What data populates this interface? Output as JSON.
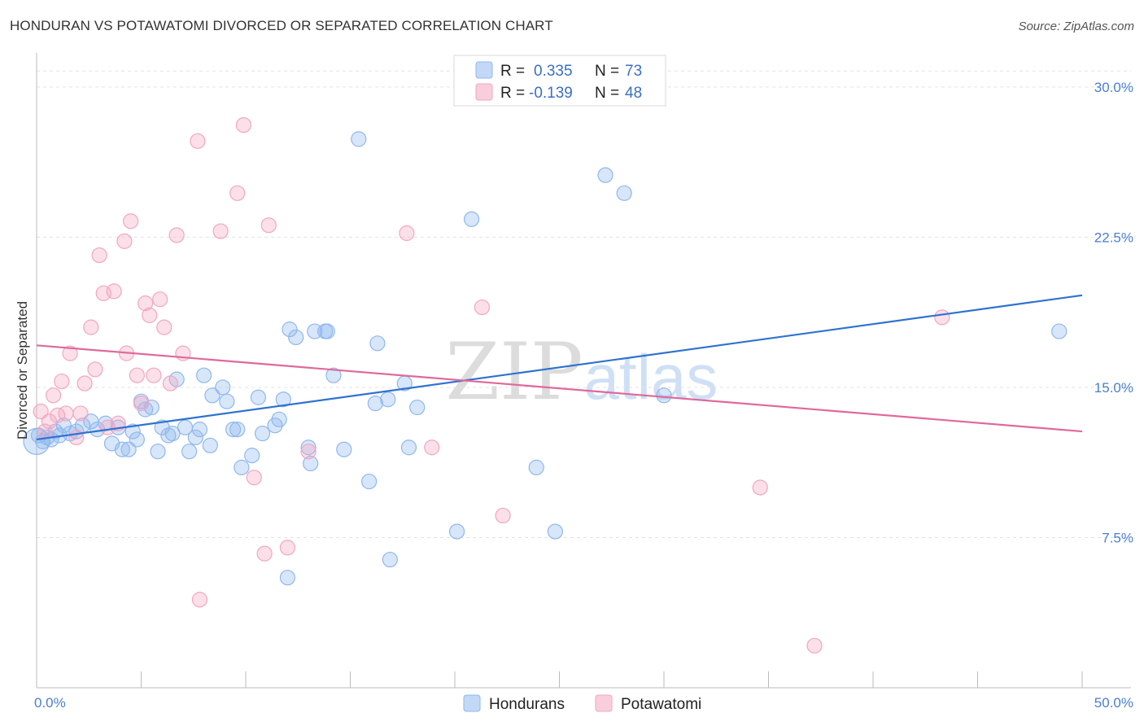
{
  "title": "HONDURAN VS POTAWATOMI DIVORCED OR SEPARATED CORRELATION CHART",
  "source": "Source: ZipAtlas.com",
  "watermark": {
    "zip": "ZIP",
    "atlas": "atlas"
  },
  "chart_data": {
    "type": "scatter",
    "ylabel": "Divorced or Separated",
    "xlim": [
      0,
      50
    ],
    "ylim": [
      0,
      31.5
    ],
    "x_tick_labels": [
      {
        "value": 0,
        "label": "0.0%"
      },
      {
        "value": 50,
        "label": "50.0%"
      }
    ],
    "y_ticks": [
      {
        "value": 7.5,
        "label": "7.5%"
      },
      {
        "value": 15.0,
        "label": "15.0%"
      },
      {
        "value": 22.5,
        "label": "22.5%"
      },
      {
        "value": 30.0,
        "label": "30.0%"
      }
    ],
    "grid": true,
    "legend_position": "top-center",
    "legend": [
      {
        "r_label": "R =",
        "r_value": "0.335",
        "n_label": "N =",
        "n_value": "73",
        "color": "#8fb8ee"
      },
      {
        "r_label": "R =",
        "r_value": "-0.139",
        "n_label": "N =",
        "n_value": "48",
        "color": "#f3a6bf"
      }
    ],
    "series": [
      {
        "name": "Hondurans",
        "color": "#8fb8ee",
        "line_color": "#2f72d0",
        "trend": {
          "x": [
            0,
            50
          ],
          "y": [
            12.4,
            19.6
          ]
        },
        "points": [
          [
            0.1,
            12.6
          ],
          [
            0.3,
            12.3
          ],
          [
            0.5,
            12.5
          ],
          [
            0.7,
            12.4
          ],
          [
            0.9,
            12.8
          ],
          [
            1.1,
            12.6
          ],
          [
            1.3,
            13.1
          ],
          [
            1.6,
            12.7
          ],
          [
            1.9,
            12.8
          ],
          [
            2.2,
            13.1
          ],
          [
            2.6,
            13.3
          ],
          [
            2.9,
            12.9
          ],
          [
            3.3,
            13.2
          ],
          [
            3.6,
            12.2
          ],
          [
            3.9,
            13.0
          ],
          [
            4.1,
            11.9
          ],
          [
            4.4,
            11.9
          ],
          [
            4.6,
            12.8
          ],
          [
            4.8,
            12.4
          ],
          [
            5.0,
            14.3
          ],
          [
            5.2,
            13.9
          ],
          [
            5.5,
            14.0
          ],
          [
            5.8,
            11.8
          ],
          [
            6.0,
            13.0
          ],
          [
            6.3,
            12.6
          ],
          [
            6.5,
            12.7
          ],
          [
            6.7,
            15.4
          ],
          [
            7.1,
            13.0
          ],
          [
            7.3,
            11.8
          ],
          [
            7.6,
            12.5
          ],
          [
            7.8,
            12.9
          ],
          [
            8.0,
            15.6
          ],
          [
            8.3,
            12.1
          ],
          [
            8.4,
            14.6
          ],
          [
            8.9,
            15.0
          ],
          [
            9.1,
            14.3
          ],
          [
            9.4,
            12.9
          ],
          [
            9.6,
            12.9
          ],
          [
            9.8,
            11.0
          ],
          [
            10.3,
            11.6
          ],
          [
            10.6,
            14.5
          ],
          [
            10.8,
            12.7
          ],
          [
            11.4,
            13.1
          ],
          [
            11.6,
            13.4
          ],
          [
            11.8,
            14.4
          ],
          [
            12.1,
            17.9
          ],
          [
            12.4,
            17.5
          ],
          [
            13.0,
            12.0
          ],
          [
            13.1,
            11.2
          ],
          [
            13.3,
            17.8
          ],
          [
            13.8,
            17.8
          ],
          [
            13.9,
            17.8
          ],
          [
            14.2,
            15.6
          ],
          [
            14.7,
            11.9
          ],
          [
            15.4,
            27.4
          ],
          [
            15.9,
            10.3
          ],
          [
            16.2,
            14.2
          ],
          [
            16.3,
            17.2
          ],
          [
            16.8,
            14.4
          ],
          [
            16.9,
            6.4
          ],
          [
            17.6,
            15.2
          ],
          [
            17.8,
            12.0
          ],
          [
            18.2,
            14.0
          ],
          [
            12.0,
            5.5
          ],
          [
            20.1,
            7.8
          ],
          [
            20.8,
            23.4
          ],
          [
            23.9,
            11.0
          ],
          [
            24.8,
            7.8
          ],
          [
            27.2,
            25.6
          ],
          [
            28.1,
            24.7
          ],
          [
            30.0,
            14.6
          ],
          [
            48.9,
            17.8
          ],
          [
            0.0,
            12.3
          ]
        ]
      },
      {
        "name": "Potawatomi",
        "color": "#f3a6bf",
        "line_color": "#e0699a",
        "trend": {
          "x": [
            0,
            50
          ],
          "y": [
            17.1,
            12.8
          ]
        },
        "points": [
          [
            0.2,
            13.8
          ],
          [
            0.4,
            12.8
          ],
          [
            0.6,
            13.3
          ],
          [
            0.8,
            14.6
          ],
          [
            1.0,
            13.6
          ],
          [
            1.2,
            15.3
          ],
          [
            1.4,
            13.7
          ],
          [
            1.6,
            16.7
          ],
          [
            1.9,
            12.5
          ],
          [
            2.1,
            13.7
          ],
          [
            2.3,
            15.2
          ],
          [
            2.6,
            18.0
          ],
          [
            2.8,
            15.9
          ],
          [
            3.0,
            21.6
          ],
          [
            3.2,
            19.7
          ],
          [
            3.4,
            13.0
          ],
          [
            3.7,
            19.8
          ],
          [
            3.9,
            13.2
          ],
          [
            4.2,
            22.3
          ],
          [
            4.3,
            16.7
          ],
          [
            4.5,
            23.3
          ],
          [
            4.8,
            15.6
          ],
          [
            5.0,
            14.2
          ],
          [
            5.2,
            19.2
          ],
          [
            5.4,
            18.6
          ],
          [
            5.6,
            15.6
          ],
          [
            5.9,
            19.4
          ],
          [
            6.1,
            18.0
          ],
          [
            6.4,
            15.2
          ],
          [
            6.7,
            22.6
          ],
          [
            7.0,
            16.7
          ],
          [
            7.7,
            27.3
          ],
          [
            7.8,
            4.4
          ],
          [
            8.8,
            22.8
          ],
          [
            9.6,
            24.7
          ],
          [
            9.9,
            28.1
          ],
          [
            10.4,
            10.5
          ],
          [
            10.9,
            6.7
          ],
          [
            11.1,
            23.1
          ],
          [
            12.0,
            7.0
          ],
          [
            13.0,
            11.8
          ],
          [
            17.7,
            22.7
          ],
          [
            18.9,
            12.0
          ],
          [
            21.3,
            19.0
          ],
          [
            22.3,
            8.6
          ],
          [
            34.6,
            10.0
          ],
          [
            37.2,
            2.1
          ],
          [
            43.3,
            18.5
          ]
        ]
      }
    ]
  },
  "bottom_legend": [
    {
      "label": "Hondurans",
      "color": "#8fb8ee"
    },
    {
      "label": "Potawatomi",
      "color": "#f3a6bf"
    }
  ]
}
